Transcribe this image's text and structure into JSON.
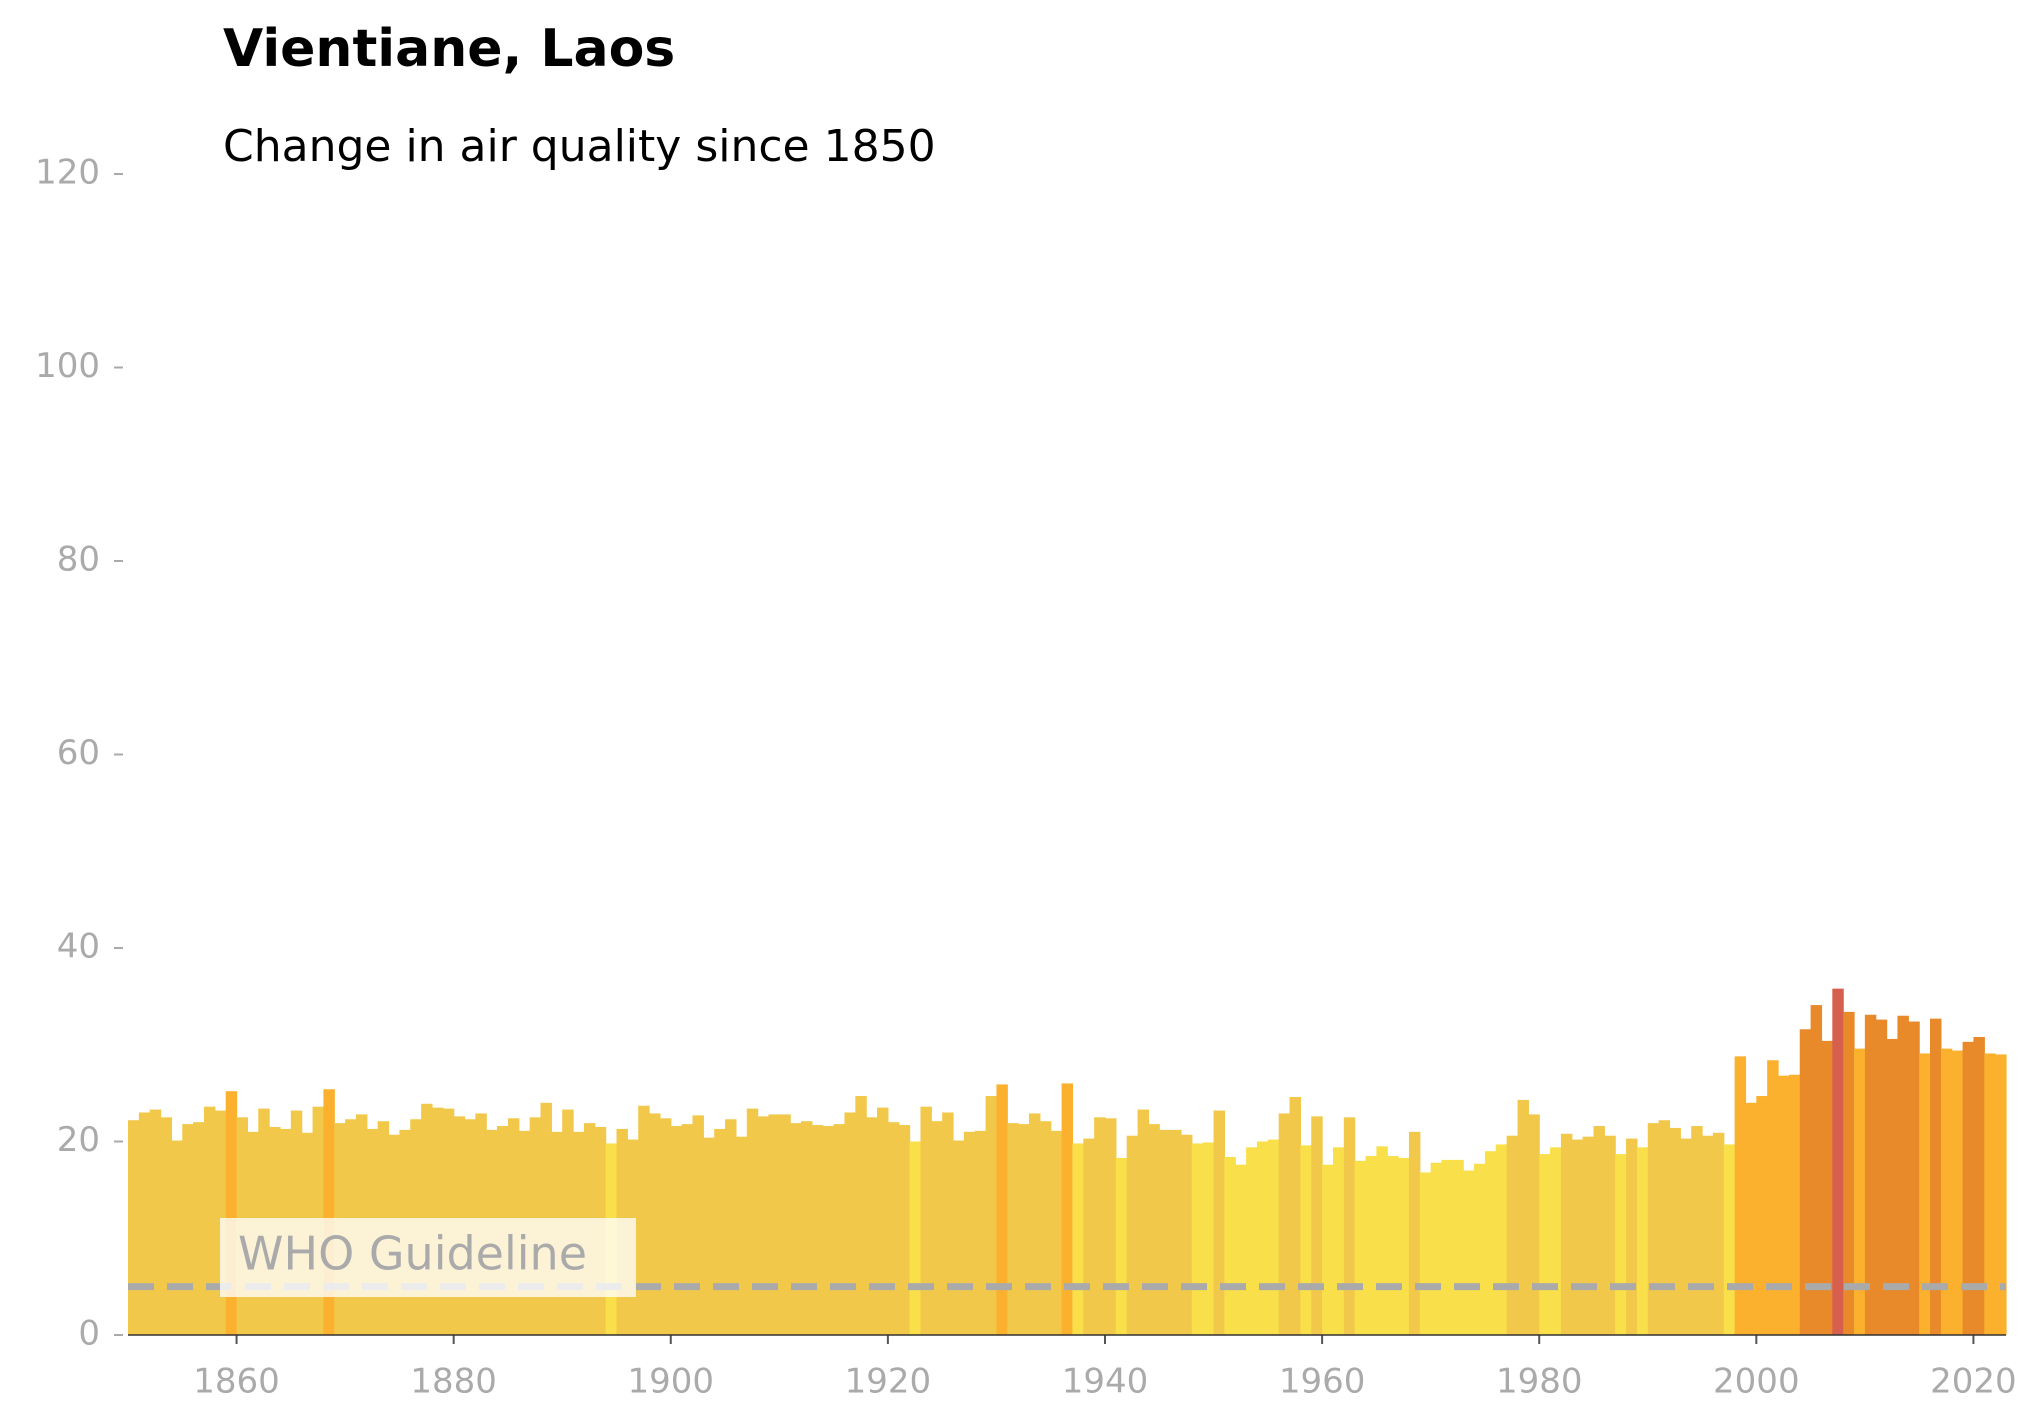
{
  "chart_data": {
    "type": "bar",
    "title": "Vientiane, Laos",
    "subtitle": "Change in air quality since 1850",
    "x_start": 1850,
    "values": [
      22.2,
      23,
      23.3,
      22.5,
      20.1,
      21.8,
      22,
      23.6,
      23.2,
      25.2,
      22.5,
      21,
      23.4,
      21.5,
      21.3,
      23.2,
      20.9,
      23.6,
      25.4,
      21.9,
      22.3,
      22.8,
      21.3,
      22.1,
      20.7,
      21.2,
      22.3,
      23.9,
      23.5,
      23.4,
      22.6,
      22.3,
      22.9,
      21.2,
      21.6,
      22.4,
      21.1,
      22.5,
      24,
      21,
      23.3,
      21,
      21.9,
      21.5,
      19.8,
      21.3,
      20.2,
      23.7,
      22.9,
      22.4,
      21.6,
      21.8,
      22.7,
      20.4,
      21.3,
      22.3,
      20.5,
      23.4,
      22.6,
      22.8,
      22.8,
      21.9,
      22.1,
      21.7,
      21.6,
      21.8,
      23,
      24.7,
      22.5,
      23.5,
      22,
      21.7,
      20,
      23.6,
      22.1,
      23,
      20.1,
      21,
      21.1,
      24.7,
      25.9,
      21.9,
      21.8,
      22.9,
      22.1,
      21.1,
      26,
      19.8,
      20.3,
      22.5,
      22.4,
      18.3,
      20.6,
      23.3,
      21.8,
      21.2,
      21.2,
      20.7,
      19.8,
      19.9,
      23.2,
      18.4,
      17.6,
      19.4,
      20,
      20.2,
      22.9,
      24.6,
      19.6,
      22.6,
      17.6,
      19.4,
      22.5,
      18,
      18.5,
      19.5,
      18.5,
      18.3,
      21,
      16.8,
      17.8,
      18.1,
      18.1,
      17,
      17.7,
      19,
      19.7,
      20.6,
      24.3,
      22.8,
      18.7,
      19.4,
      20.8,
      20.2,
      20.5,
      21.6,
      20.6,
      18.7,
      20.3,
      19.4,
      21.9,
      22.2,
      21.4,
      20.3,
      21.6,
      20.6,
      20.9,
      19.7,
      28.8,
      24,
      24.7,
      28.4,
      26.8,
      26.9,
      31.6,
      34.1,
      30.4,
      35.8,
      33.4,
      29.6,
      33.1,
      32.6,
      30.6,
      33,
      32.4,
      29.1,
      32.7,
      29.6,
      29.4,
      30.3,
      30.8,
      29.1,
      29
    ],
    "colors": [
      "#f2c84b",
      "#f2c84b",
      "#f2c84b",
      "#f2c84b",
      "#f2c84b",
      "#f2c84b",
      "#f2c84b",
      "#f2c84b",
      "#f2c84b",
      "#fbb12e",
      "#f2c84b",
      "#f2c84b",
      "#f2c84b",
      "#f2c84b",
      "#f2c84b",
      "#f2c84b",
      "#f2c84b",
      "#f2c84b",
      "#fbb12e",
      "#f2c84b",
      "#f2c84b",
      "#f2c84b",
      "#f2c84b",
      "#f2c84b",
      "#f2c84b",
      "#f2c84b",
      "#f2c84b",
      "#f2c84b",
      "#f2c84b",
      "#f2c84b",
      "#f2c84b",
      "#f2c84b",
      "#f2c84b",
      "#f2c84b",
      "#f2c84b",
      "#f2c84b",
      "#f2c84b",
      "#f2c84b",
      "#f2c84b",
      "#f2c84b",
      "#f2c84b",
      "#f2c84b",
      "#f2c84b",
      "#f2c84b",
      "#f9e04a",
      "#f2c84b",
      "#f2c84b",
      "#f2c84b",
      "#f2c84b",
      "#f2c84b",
      "#f2c84b",
      "#f2c84b",
      "#f2c84b",
      "#f2c84b",
      "#f2c84b",
      "#f2c84b",
      "#f2c84b",
      "#f2c84b",
      "#f2c84b",
      "#f2c84b",
      "#f2c84b",
      "#f2c84b",
      "#f2c84b",
      "#f2c84b",
      "#f2c84b",
      "#f2c84b",
      "#f2c84b",
      "#f2c84b",
      "#f2c84b",
      "#f2c84b",
      "#f2c84b",
      "#f2c84b",
      "#f9e04a",
      "#f2c84b",
      "#f2c84b",
      "#f2c84b",
      "#f2c84b",
      "#f2c84b",
      "#f2c84b",
      "#f2c84b",
      "#fbb12e",
      "#f2c84b",
      "#f2c84b",
      "#f2c84b",
      "#f2c84b",
      "#f2c84b",
      "#fbb12e",
      "#f9e04a",
      "#f2c84b",
      "#f2c84b",
      "#f2c84b",
      "#f9e04a",
      "#f2c84b",
      "#f2c84b",
      "#f2c84b",
      "#f2c84b",
      "#f2c84b",
      "#f2c84b",
      "#f9e04a",
      "#f9e04a",
      "#f2c84b",
      "#f9e04a",
      "#f9e04a",
      "#f9e04a",
      "#f9e04a",
      "#f9e04a",
      "#f2c84b",
      "#f2c84b",
      "#f9e04a",
      "#f2c84b",
      "#f9e04a",
      "#f9e04a",
      "#f2c84b",
      "#f9e04a",
      "#f9e04a",
      "#f9e04a",
      "#f9e04a",
      "#f9e04a",
      "#f2c84b",
      "#f9e04a",
      "#f9e04a",
      "#f9e04a",
      "#f9e04a",
      "#f9e04a",
      "#f9e04a",
      "#f9e04a",
      "#f9e04a",
      "#f2c84b",
      "#f2c84b",
      "#f2c84b",
      "#f9e04a",
      "#f9e04a",
      "#f2c84b",
      "#f2c84b",
      "#f2c84b",
      "#f2c84b",
      "#f2c84b",
      "#f9e04a",
      "#f2c84b",
      "#f9e04a",
      "#f2c84b",
      "#f2c84b",
      "#f2c84b",
      "#f2c84b",
      "#f2c84b",
      "#f2c84b",
      "#f2c84b",
      "#f9e04a",
      "#fbb12e",
      "#fbb12e",
      "#fbb12e",
      "#fbb12e",
      "#fbb12e",
      "#fbb12e",
      "#e8892a",
      "#e8892a",
      "#e8892a",
      "#d6604d",
      "#e8892a",
      "#fbb12e",
      "#e8892a",
      "#e8892a",
      "#e8892a",
      "#e8892a",
      "#e8892a",
      "#fbb12e",
      "#e8892a",
      "#fbb12e",
      "#fbb12e",
      "#e8892a",
      "#e8892a",
      "#fbb12e",
      "#fbb12e"
    ],
    "xlim": [
      1850,
      2023
    ],
    "xticks": [
      1860,
      1880,
      1900,
      1920,
      1940,
      1960,
      1980,
      2000,
      2020
    ],
    "ylim": [
      0,
      120
    ],
    "yticks": [
      0,
      20,
      40,
      60,
      80,
      100,
      120
    ],
    "guideline": {
      "value": 5,
      "label": "WHO Guideline",
      "color": "#aaaaaa"
    }
  }
}
